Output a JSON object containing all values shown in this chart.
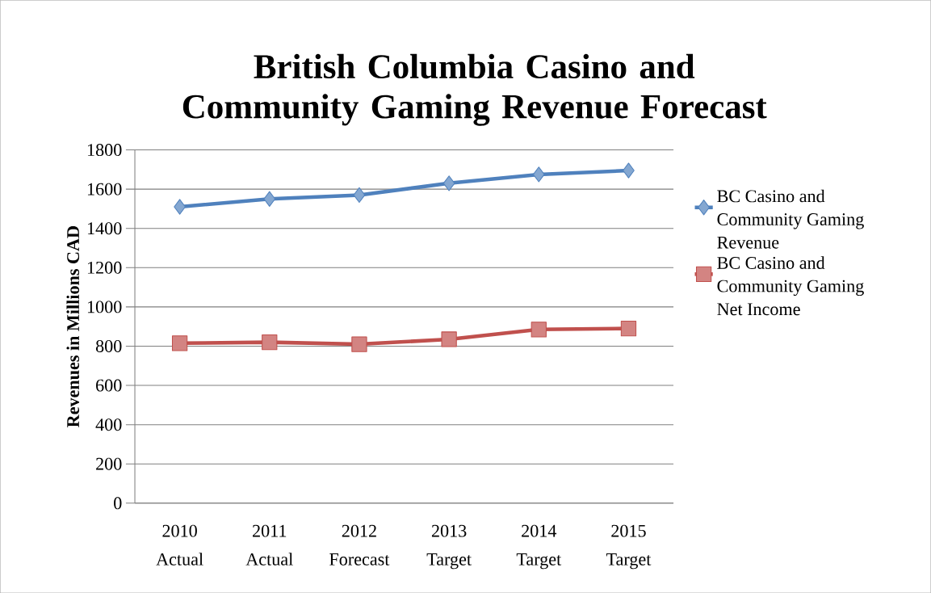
{
  "chart_data": {
    "type": "line",
    "title": "British Columbia Casino and Community Gaming Revenue Forecast",
    "ylabel": "Revenues in Millions CAD",
    "categories": [
      "2010 Actual",
      "2011 Actual",
      "2012 Forecast",
      "2013 Target",
      "2014 Target",
      "2015 Target"
    ],
    "series": [
      {
        "name": "BC Casino and Community Gaming Revenue",
        "color": "#4f81bd",
        "marker": "diamond",
        "values": [
          1510,
          1550,
          1570,
          1630,
          1675,
          1695
        ]
      },
      {
        "name": "BC Casino and Community Gaming Net Income",
        "color": "#c0504d",
        "marker": "square",
        "values": [
          815,
          820,
          810,
          835,
          885,
          890
        ]
      }
    ],
    "ylim": [
      0,
      1800
    ],
    "yticks": [
      0,
      200,
      400,
      600,
      800,
      1000,
      1200,
      1400,
      1600,
      1800
    ],
    "grid": "y",
    "legend": "right"
  }
}
